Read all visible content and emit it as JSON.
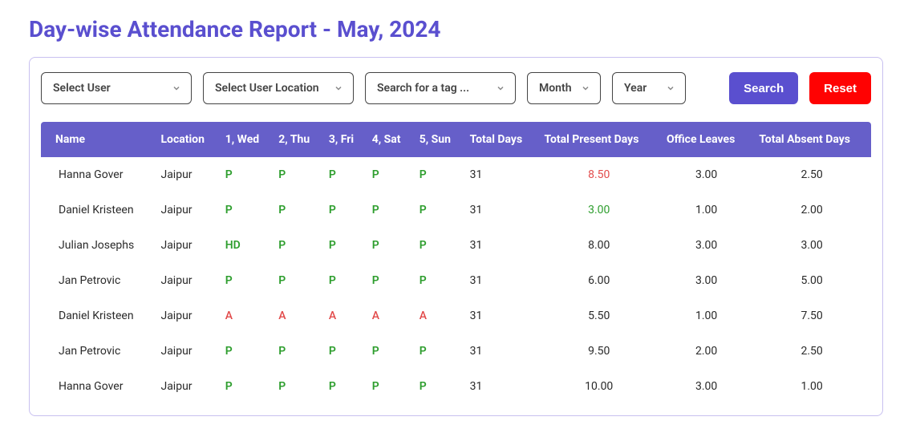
{
  "title": "Day-wise Attendance Report - May, 2024",
  "filters": {
    "user": {
      "placeholder": "Select User"
    },
    "location": {
      "placeholder": "Select User Location"
    },
    "tag": {
      "placeholder": "Search for a tag ..."
    },
    "month": {
      "placeholder": "Month"
    },
    "year": {
      "placeholder": "Year"
    }
  },
  "buttons": {
    "search": "Search",
    "reset": "Reset"
  },
  "table": {
    "headers": {
      "name": "Name",
      "location": "Location",
      "d1": "1, Wed",
      "d2": "2, Thu",
      "d3": "3, Fri",
      "d4": "4, Sat",
      "d5": "5, Sun",
      "totalDays": "Total Days",
      "totalPresent": "Total Present Days",
      "officeLeaves": "Office Leaves",
      "totalAbsent": "Total Absent Days"
    },
    "rows": [
      {
        "name": "Hanna Gover",
        "location": "Jaipur",
        "days": [
          "P",
          "P",
          "P",
          "P",
          "P"
        ],
        "totalDays": "31",
        "present": "8.50",
        "presentColor": "red",
        "leaves": "3.00",
        "absent": "2.50"
      },
      {
        "name": "Daniel Kristeen",
        "location": "Jaipur",
        "days": [
          "P",
          "P",
          "P",
          "P",
          "P"
        ],
        "totalDays": "31",
        "present": "3.00",
        "presentColor": "green",
        "leaves": "1.00",
        "absent": "2.00"
      },
      {
        "name": "Julian Josephs",
        "location": "Jaipur",
        "days": [
          "HD",
          "P",
          "P",
          "P",
          "P"
        ],
        "totalDays": "31",
        "present": "8.00",
        "presentColor": "",
        "leaves": "3.00",
        "absent": "3.00"
      },
      {
        "name": "Jan Petrovic",
        "location": "Jaipur",
        "days": [
          "P",
          "P",
          "P",
          "P",
          "P"
        ],
        "totalDays": "31",
        "present": "6.00",
        "presentColor": "",
        "leaves": "3.00",
        "absent": "5.00"
      },
      {
        "name": "Daniel Kristeen",
        "location": "Jaipur",
        "days": [
          "A",
          "A",
          "A",
          "A",
          "A"
        ],
        "totalDays": "31",
        "present": "5.50",
        "presentColor": "",
        "leaves": "1.00",
        "absent": "7.50"
      },
      {
        "name": "Jan Petrovic",
        "location": "Jaipur",
        "days": [
          "P",
          "P",
          "P",
          "P",
          "P"
        ],
        "totalDays": "31",
        "present": "9.50",
        "presentColor": "",
        "leaves": "2.00",
        "absent": "2.50"
      },
      {
        "name": "Hanna Gover",
        "location": "Jaipur",
        "days": [
          "P",
          "P",
          "P",
          "P",
          "P"
        ],
        "totalDays": "31",
        "present": "10.00",
        "presentColor": "",
        "leaves": "3.00",
        "absent": "1.00"
      }
    ]
  },
  "styling": {
    "primaryColor": "#5a4fcf",
    "headerBg": "#665fc9",
    "dangerColor": "#ff0202",
    "presentGreen": "#2e9e2e",
    "absentRed": "#e24b4b",
    "panelBorder": "#c8c0f0"
  }
}
